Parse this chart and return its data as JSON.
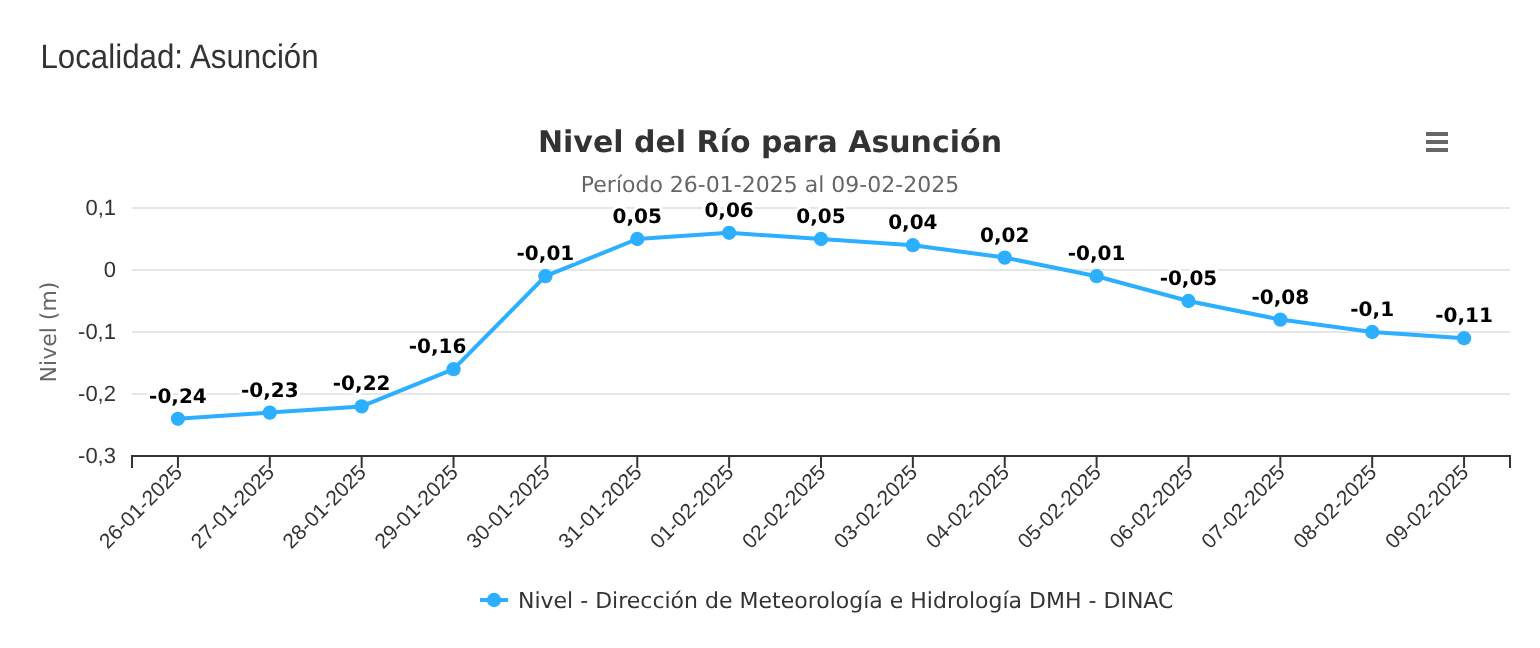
{
  "chart_data": {
    "type": "line",
    "title": "Nivel del Río para Asunción",
    "subtitle": "Período 26-01-2025 al 09-02-2025",
    "ylabel": "Nivel (m)",
    "annotations": [
      "Localidad: Asunción"
    ],
    "categories": [
      "26-01-2025",
      "27-01-2025",
      "28-01-2025",
      "29-01-2025",
      "30-01-2025",
      "31-01-2025",
      "01-02-2025",
      "02-02-2025",
      "03-02-2025",
      "04-02-2025",
      "05-02-2025",
      "06-02-2025",
      "07-02-2025",
      "08-02-2025",
      "09-02-2025"
    ],
    "series": [
      {
        "name": "Nivel - Dirección de Meteorología e Hidrología DMH - DINAC",
        "color": "#2caffe",
        "values": [
          -0.24,
          -0.23,
          -0.22,
          -0.16,
          -0.01,
          0.05,
          0.06,
          0.05,
          0.04,
          0.02,
          -0.01,
          -0.05,
          -0.08,
          -0.1,
          -0.11
        ],
        "value_labels": [
          "-0,24",
          "-0,23",
          "-0,22",
          "-0,16",
          "-0,01",
          "0,05",
          "0,06",
          "0,05",
          "0,04",
          "0,02",
          "-0,01",
          "-0,05",
          "-0,08",
          "-0,1",
          "-0,11"
        ]
      }
    ],
    "ylim": [
      -0.3,
      0.1
    ],
    "yticks": [
      {
        "value": 0.1,
        "label": "0,1"
      },
      0,
      {
        "value": -0.1,
        "label": "-0,1"
      },
      {
        "value": -0.2,
        "label": "-0,2"
      },
      {
        "value": -0.3,
        "label": "-0,3"
      }
    ],
    "grid": "y",
    "legend": "bottom",
    "marker": "circle",
    "line_style": "solid"
  }
}
